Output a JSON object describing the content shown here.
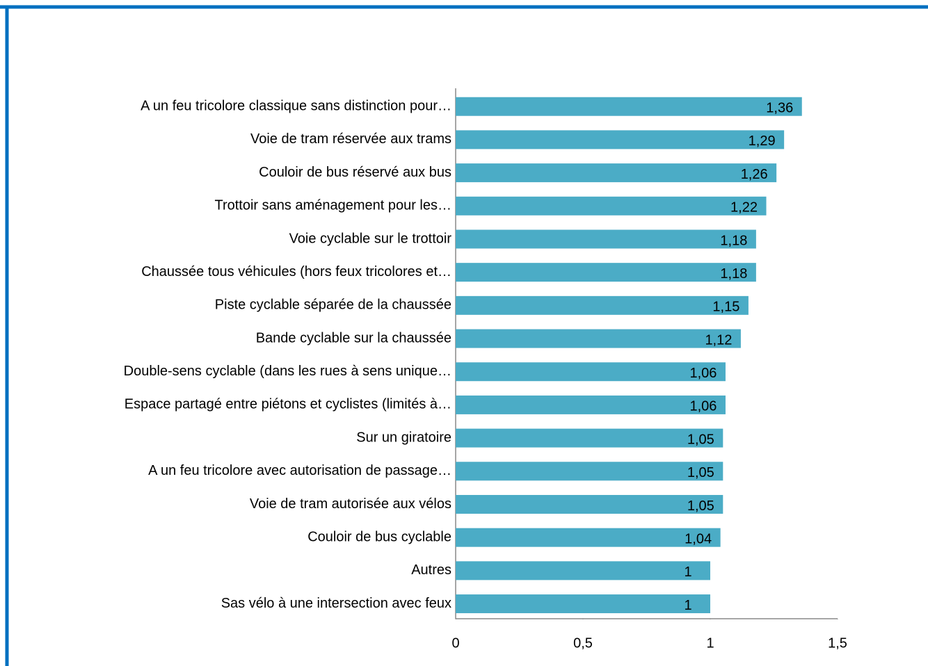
{
  "chart_data": {
    "type": "bar",
    "orientation": "horizontal",
    "categories": [
      "A un feu tricolore classique sans distinction pour…",
      "Voie de tram réservée aux trams",
      "Couloir de bus réservé aux bus",
      "Trottoir sans aménagement pour les…",
      "Voie cyclable sur le trottoir",
      "Chaussée tous véhicules (hors feux tricolores et…",
      "Piste cyclable séparée de la chaussée",
      "Bande cyclable sur la chaussée",
      "Double-sens cyclable (dans les rues à sens unique…",
      "Espace partagé entre piétons et cyclistes (limités à…",
      "Sur un giratoire",
      "A un feu tricolore avec autorisation de passage…",
      "Voie de tram autorisée aux vélos",
      "Couloir de bus cyclable",
      "Autres",
      "Sas vélo à une intersection avec feux"
    ],
    "values": [
      1.36,
      1.29,
      1.26,
      1.22,
      1.18,
      1.18,
      1.15,
      1.12,
      1.06,
      1.06,
      1.05,
      1.05,
      1.05,
      1.04,
      1,
      1
    ],
    "value_labels": [
      "1,36",
      "1,29",
      "1,26",
      "1,22",
      "1,18",
      "1,18",
      "1,15",
      "1,12",
      "1,06",
      "1,06",
      "1,05",
      "1,05",
      "1,05",
      "1,04",
      "1",
      "1"
    ],
    "color": "#4bacc6",
    "xlim": [
      0,
      1.5
    ],
    "xticks": [
      0,
      {
        "value": 0.5,
        "label": "0,5"
      },
      1,
      {
        "value": 1.5,
        "label": "1,5"
      }
    ],
    "grid": false
  }
}
